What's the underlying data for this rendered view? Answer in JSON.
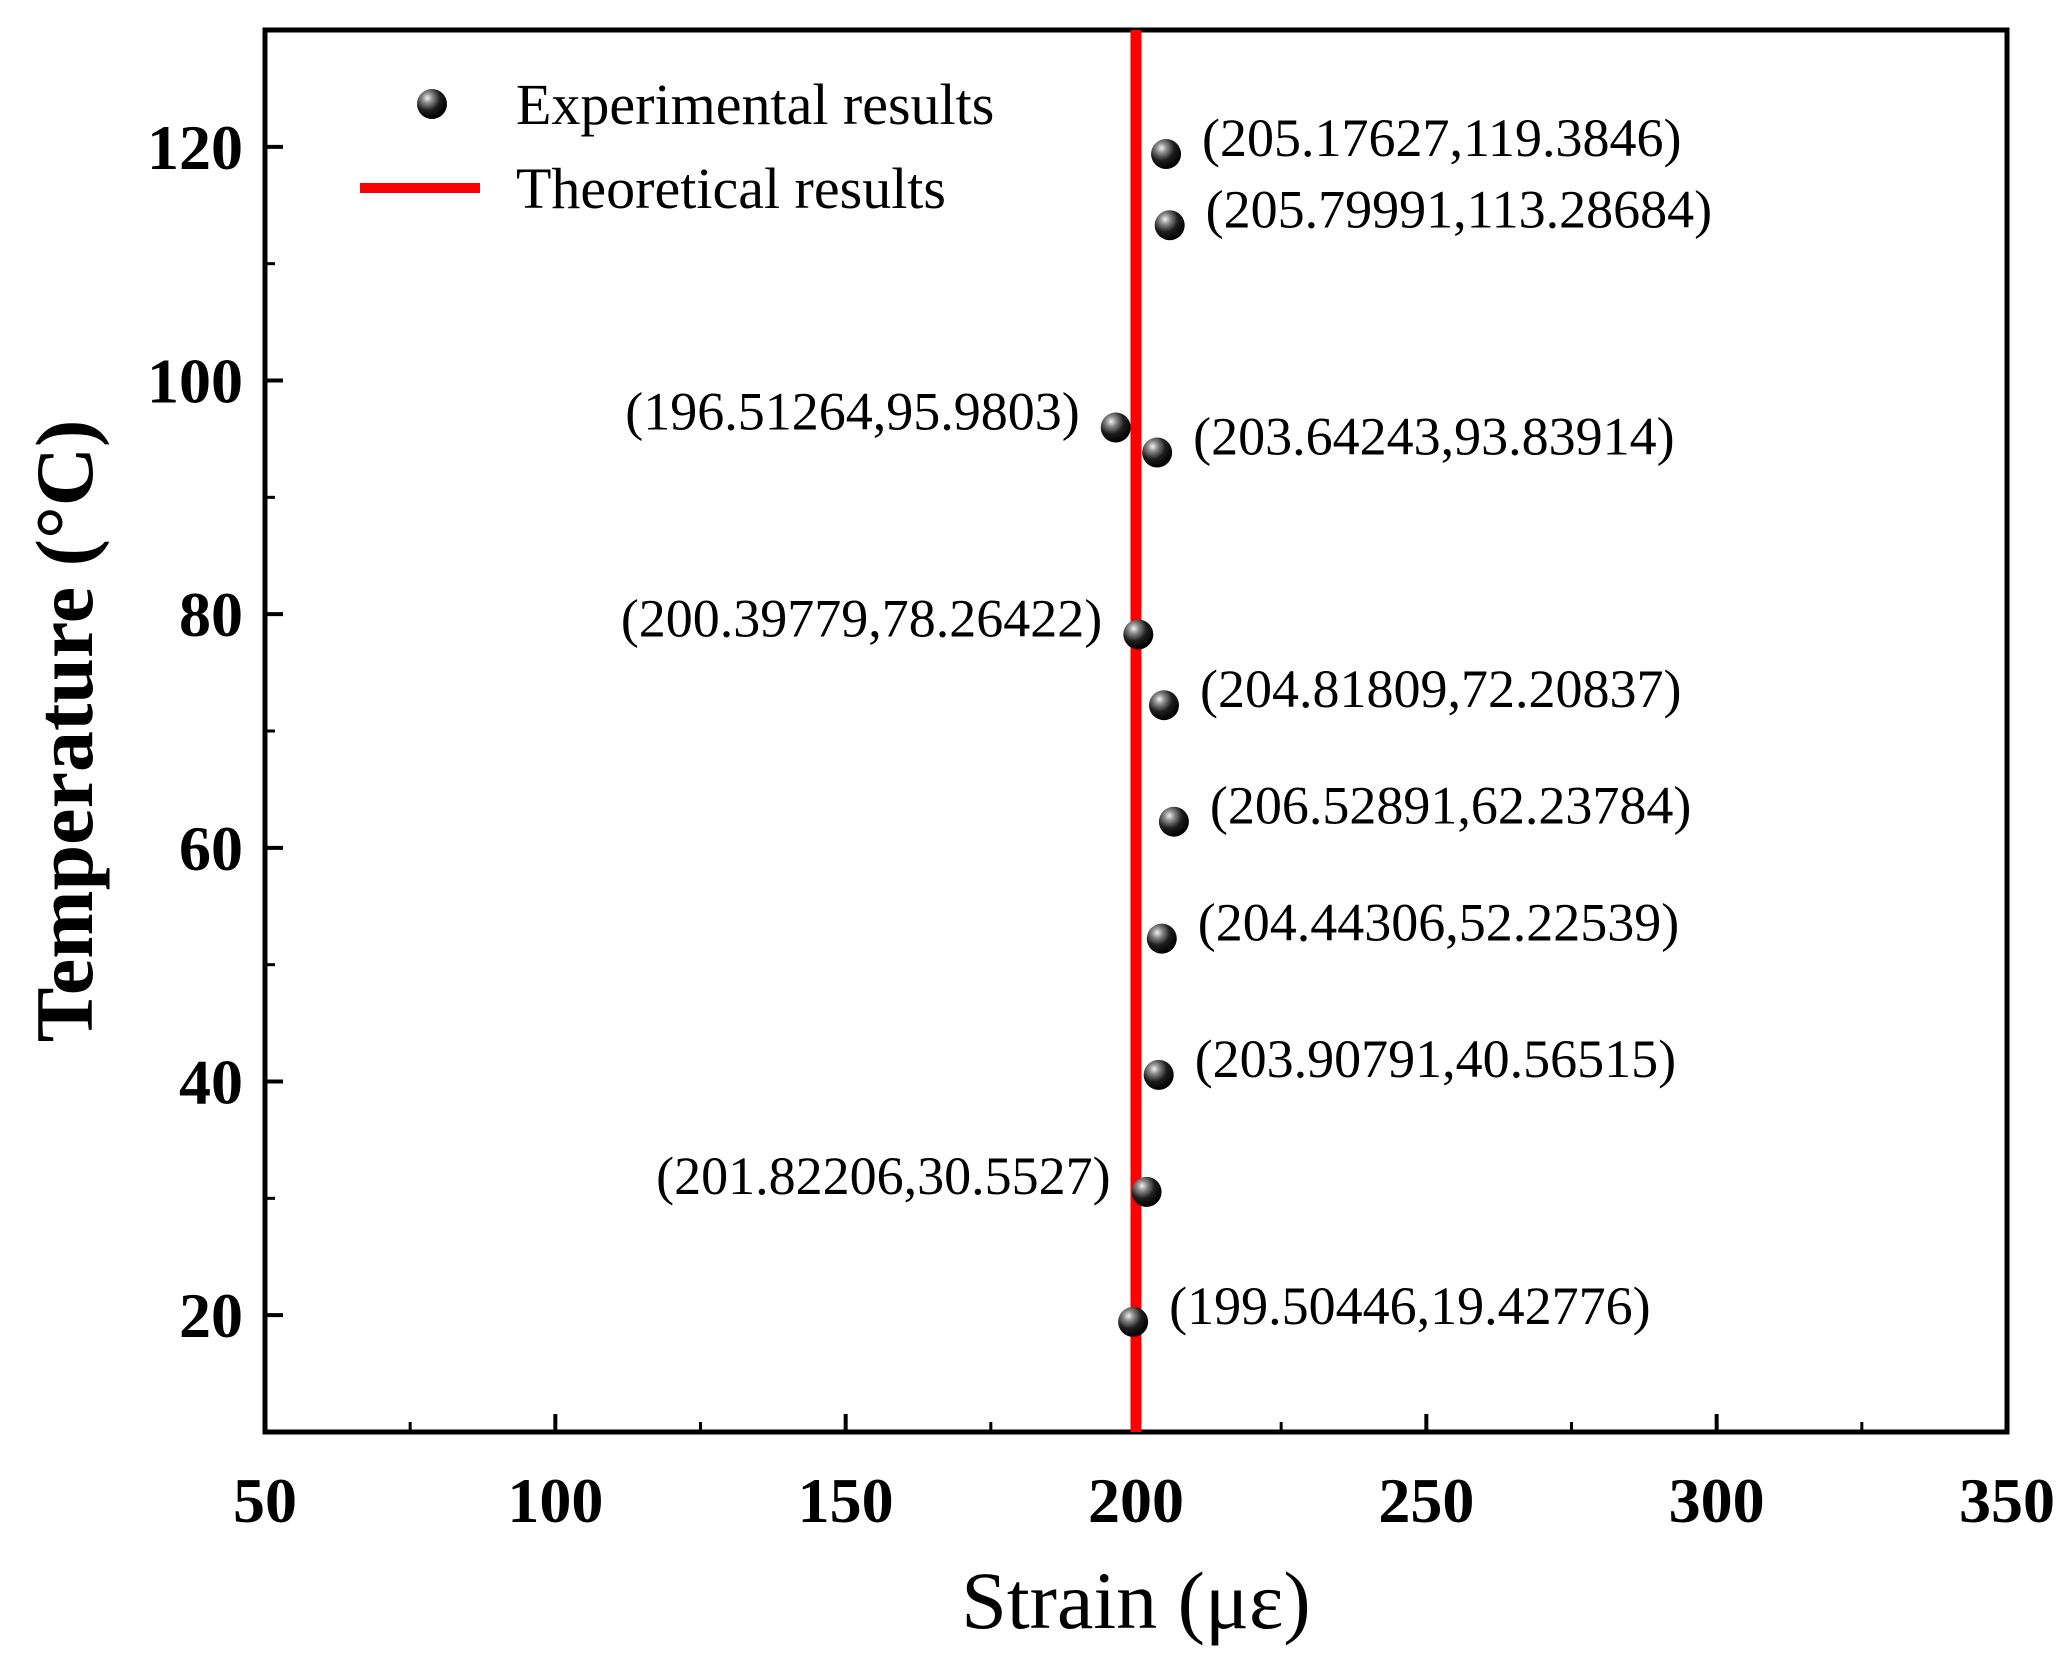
{
  "chart_data": {
    "type": "scatter",
    "title": "",
    "xlabel": "Strain (με)",
    "ylabel": "Temperature (°C)",
    "xlim": [
      50,
      350
    ],
    "ylim": [
      10,
      130
    ],
    "xticks": [
      50,
      100,
      150,
      200,
      250,
      300,
      350
    ],
    "xtick_labels": [
      "50",
      "100",
      "150",
      "200",
      "250",
      "300",
      "350"
    ],
    "yticks": [
      20,
      40,
      60,
      80,
      100,
      120
    ],
    "ytick_labels": [
      "20",
      "40",
      "60",
      "80",
      "100",
      "120"
    ],
    "grid": false,
    "legend": {
      "position": "top-left",
      "entries": [
        {
          "name": "Experimental results",
          "marker": "sphere",
          "color": "#000000"
        },
        {
          "name": "Theoretical results",
          "marker": "line",
          "color": "#ff0000"
        }
      ]
    },
    "series": [
      {
        "name": "Experimental results",
        "type": "scatter",
        "color": "#000000",
        "points": [
          {
            "x": 199.50446,
            "y": 19.42776,
            "label": "(199.50446,19.42776)",
            "label_side": "right"
          },
          {
            "x": 201.82206,
            "y": 30.5527,
            "label": "(201.82206,30.5527)",
            "label_side": "left"
          },
          {
            "x": 203.90791,
            "y": 40.56515,
            "label": "(203.90791,40.56515)",
            "label_side": "right"
          },
          {
            "x": 204.44306,
            "y": 52.22539,
            "label": "(204.44306,52.22539)",
            "label_side": "right"
          },
          {
            "x": 206.52891,
            "y": 62.23784,
            "label": "(206.52891,62.23784)",
            "label_side": "right"
          },
          {
            "x": 204.81809,
            "y": 72.20837,
            "label": "(204.81809,72.20837)",
            "label_side": "right"
          },
          {
            "x": 200.39779,
            "y": 78.26422,
            "label": "(200.39779,78.26422)",
            "label_side": "left"
          },
          {
            "x": 203.64243,
            "y": 93.83914,
            "label": "(203.64243,93.83914)",
            "label_side": "right"
          },
          {
            "x": 196.51264,
            "y": 95.9803,
            "label": "(196.51264,95.9803)",
            "label_side": "left"
          },
          {
            "x": 205.79991,
            "y": 113.28684,
            "label": "(205.79991,113.28684)",
            "label_side": "right"
          },
          {
            "x": 205.17627,
            "y": 119.3846,
            "label": "(205.17627,119.3846)",
            "label_side": "right"
          }
        ]
      },
      {
        "name": "Theoretical results",
        "type": "line",
        "color": "#ff0000",
        "orientation": "vertical",
        "x": 200
      }
    ]
  }
}
